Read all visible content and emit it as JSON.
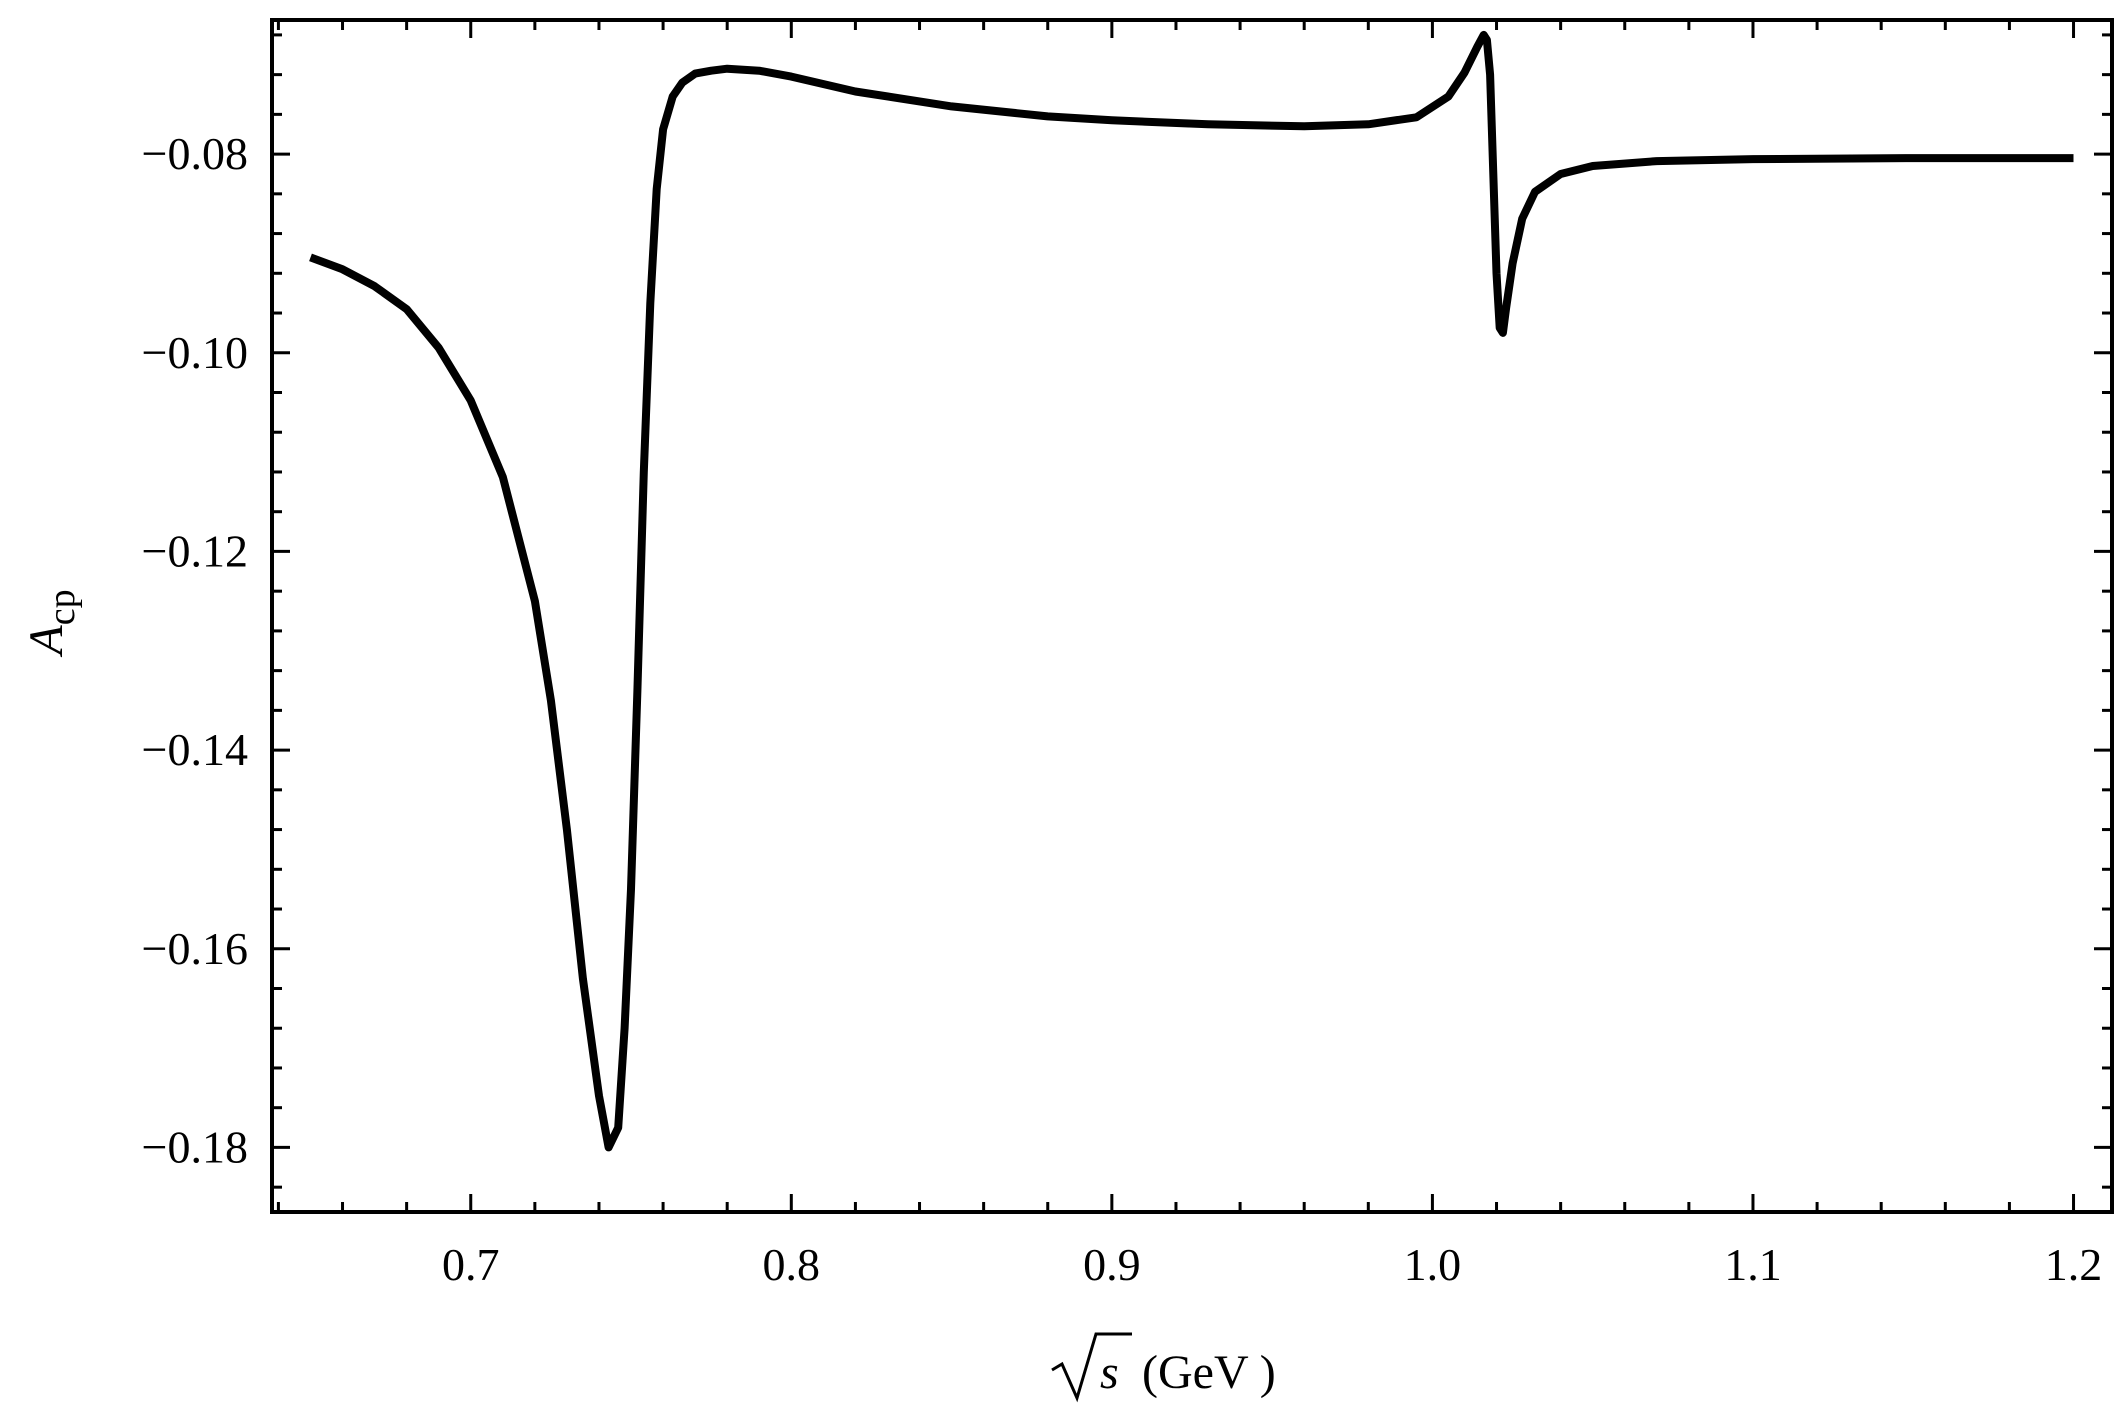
{
  "chart_data": {
    "type": "line",
    "title": "",
    "xlabel": "(GeV )",
    "xlabel_symbol": "s",
    "ylabel_symbol": "A",
    "ylabel_subscript": "cp",
    "xlim": [
      0.638,
      1.212
    ],
    "ylim": [
      -0.1865,
      -0.0665
    ],
    "grid": false,
    "legend": "none",
    "line_color": "#000000",
    "x_ticks": [
      {
        "value": 0.7,
        "label": "0.7"
      },
      {
        "value": 0.8,
        "label": "0.8"
      },
      {
        "value": 0.9,
        "label": "0.9"
      },
      {
        "value": 1.0,
        "label": "1.0"
      },
      {
        "value": 1.1,
        "label": "1.1"
      },
      {
        "value": 1.2,
        "label": "1.2"
      }
    ],
    "y_ticks": [
      {
        "value": -0.08,
        "label": "−0.08"
      },
      {
        "value": -0.1,
        "label": "−0.10"
      },
      {
        "value": -0.12,
        "label": "−0.12"
      },
      {
        "value": -0.14,
        "label": "−0.14"
      },
      {
        "value": -0.16,
        "label": "−0.16"
      },
      {
        "value": -0.18,
        "label": "−0.18"
      }
    ],
    "series": [
      {
        "x": [
          0.65,
          0.66,
          0.67,
          0.68,
          0.69,
          0.7,
          0.71,
          0.72,
          0.725,
          0.73,
          0.735,
          0.74,
          0.743,
          0.746,
          0.748,
          0.75,
          0.752,
          0.754,
          0.756,
          0.758,
          0.76,
          0.763,
          0.766,
          0.77,
          0.775,
          0.78,
          0.79,
          0.8,
          0.82,
          0.85,
          0.88,
          0.9,
          0.93,
          0.96,
          0.98,
          0.995,
          1.005,
          1.01,
          1.014,
          1.016,
          1.017,
          1.018,
          1.019,
          1.02,
          1.021,
          1.022,
          1.023,
          1.025,
          1.028,
          1.032,
          1.04,
          1.05,
          1.07,
          1.1,
          1.15,
          1.2
        ],
        "y": [
          -0.0904,
          -0.0916,
          -0.0933,
          -0.0956,
          -0.0995,
          -0.1048,
          -0.1125,
          -0.125,
          -0.135,
          -0.148,
          -0.163,
          -0.1748,
          -0.18,
          -0.178,
          -0.168,
          -0.154,
          -0.134,
          -0.112,
          -0.095,
          -0.0835,
          -0.0775,
          -0.0742,
          -0.0728,
          -0.0719,
          -0.0716,
          -0.0714,
          -0.0716,
          -0.0722,
          -0.0737,
          -0.0752,
          -0.0762,
          -0.0766,
          -0.077,
          -0.0772,
          -0.077,
          -0.0763,
          -0.0742,
          -0.0718,
          -0.0692,
          -0.068,
          -0.0685,
          -0.072,
          -0.082,
          -0.092,
          -0.0975,
          -0.098,
          -0.0955,
          -0.091,
          -0.0865,
          -0.0838,
          -0.082,
          -0.0812,
          -0.0807,
          -0.0805,
          -0.0804,
          -0.0804
        ]
      }
    ]
  }
}
